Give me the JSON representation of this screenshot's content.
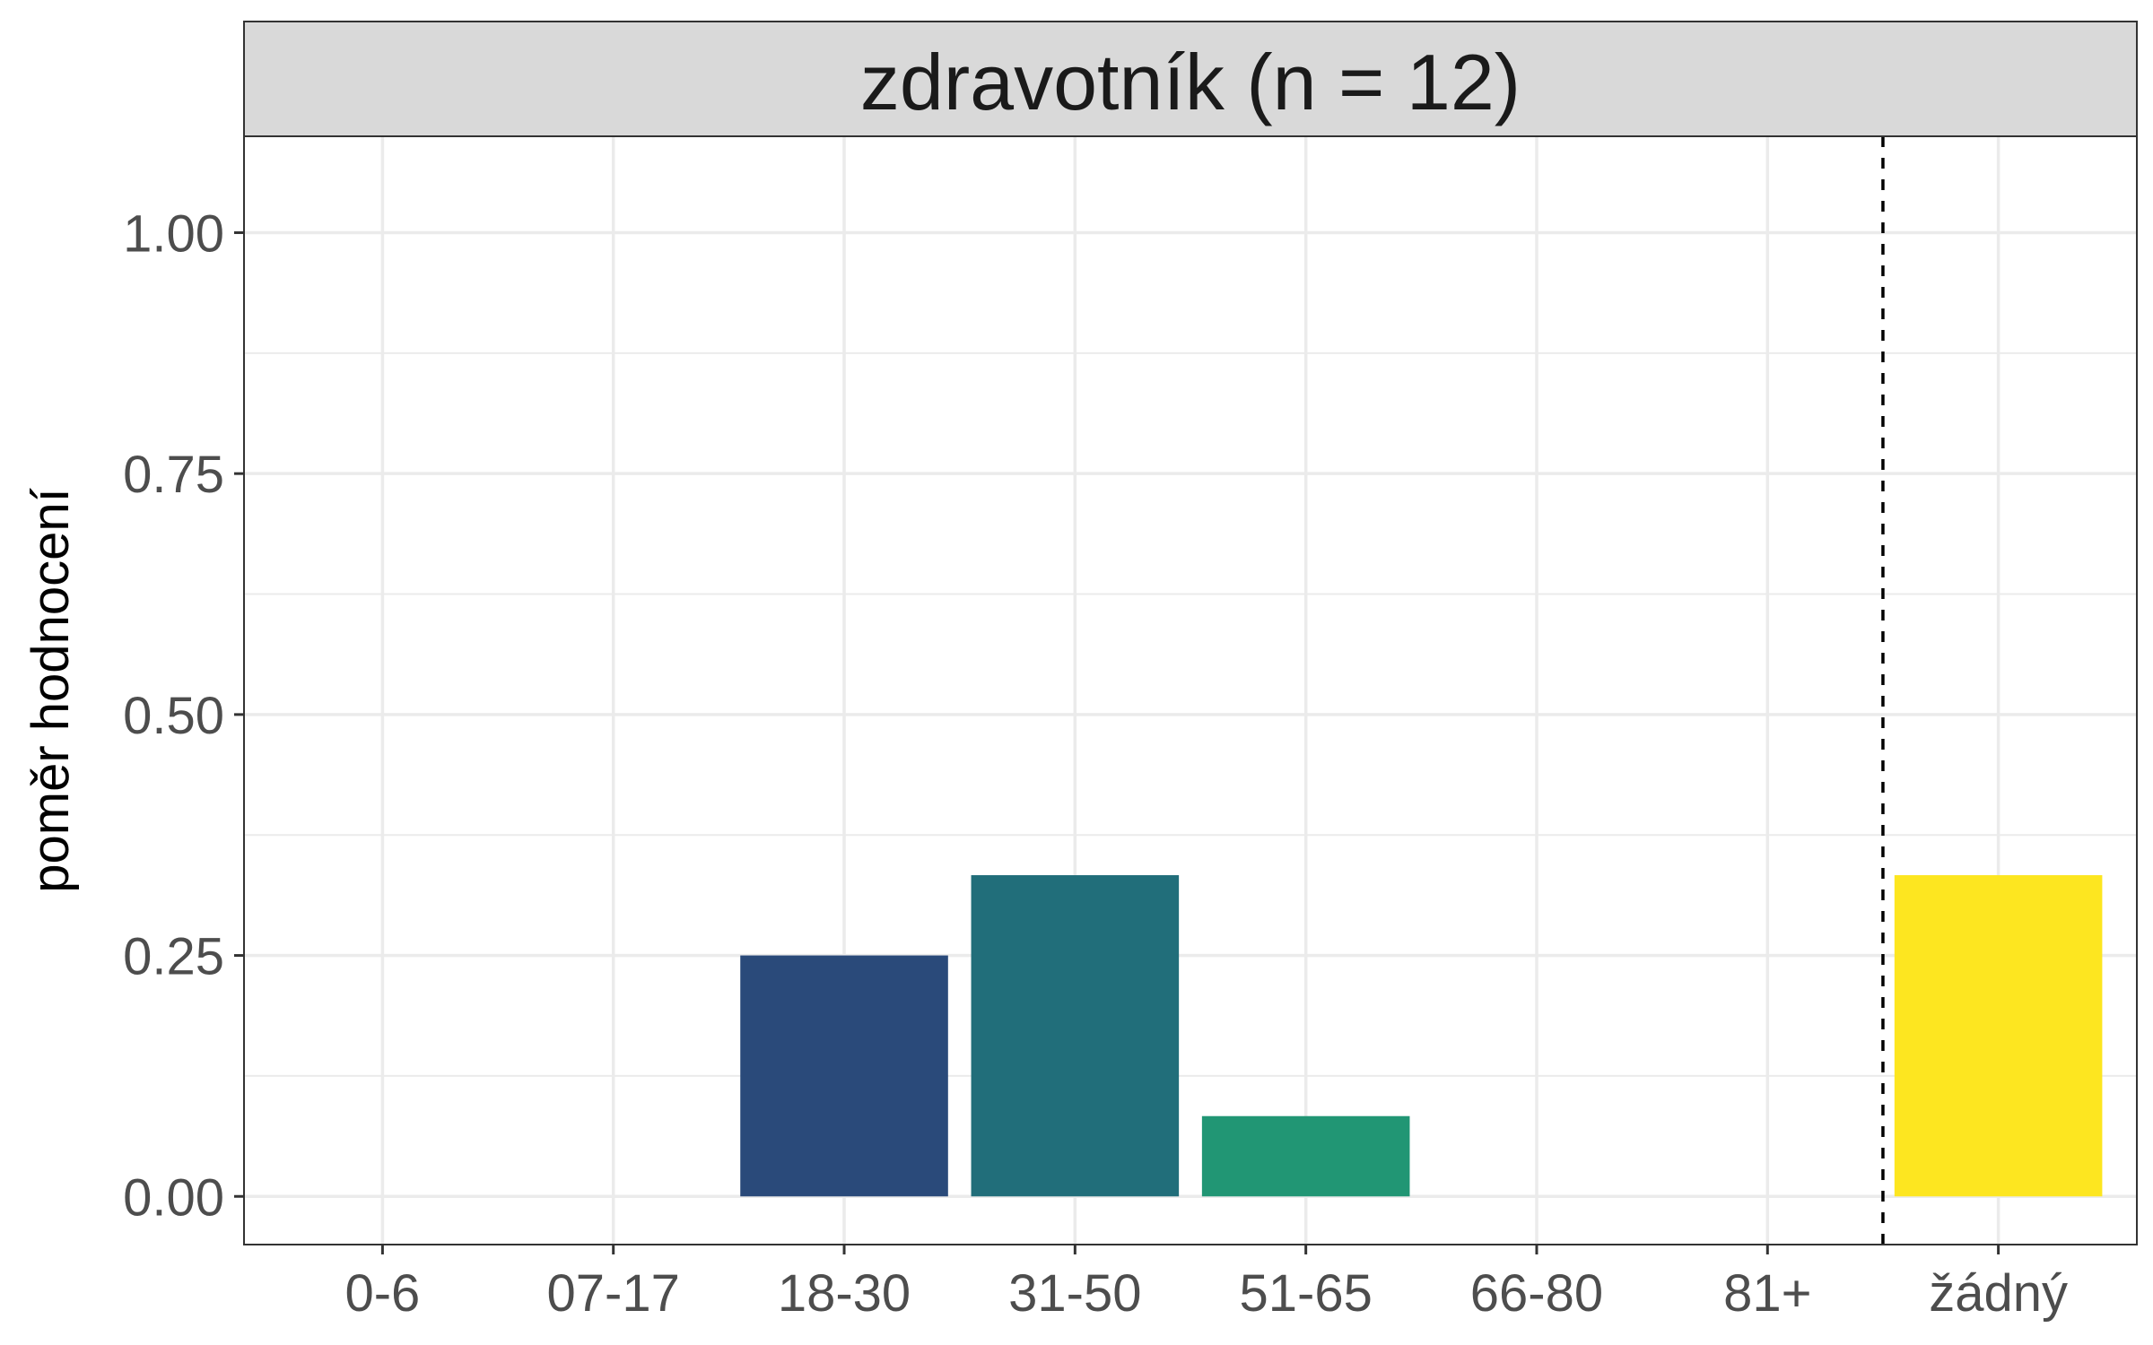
{
  "chart_data": {
    "type": "bar",
    "facet_title": "zdravotník (n = 12)",
    "ylabel": "poměr hodnocení",
    "xlabel": "",
    "ylim": [
      -0.05,
      1.1
    ],
    "y_ticks": [
      0,
      0.25,
      0.5,
      0.75,
      1.0
    ],
    "y_tick_labels": [
      "0.00",
      "0.25",
      "0.50",
      "0.75",
      "1.00"
    ],
    "y_minor_ticks": [
      0.125,
      0.375,
      0.625,
      0.875
    ],
    "categories": [
      "0-6",
      "07-17",
      "18-30",
      "31-50",
      "51-65",
      "66-80",
      "81+",
      "žádný"
    ],
    "values": [
      0,
      0,
      0.25,
      0.3333,
      0.0833,
      0,
      0,
      0.3333
    ],
    "colors": [
      "#440154",
      "#46337E",
      "#2A4A7A",
      "#216E7A",
      "#219674",
      "#6BC05A",
      "#B5DC36",
      "#FDE620"
    ],
    "reference_line": {
      "between": [
        "81+",
        "žádný"
      ],
      "style": "dashed"
    },
    "grid": true,
    "legend": "none"
  }
}
